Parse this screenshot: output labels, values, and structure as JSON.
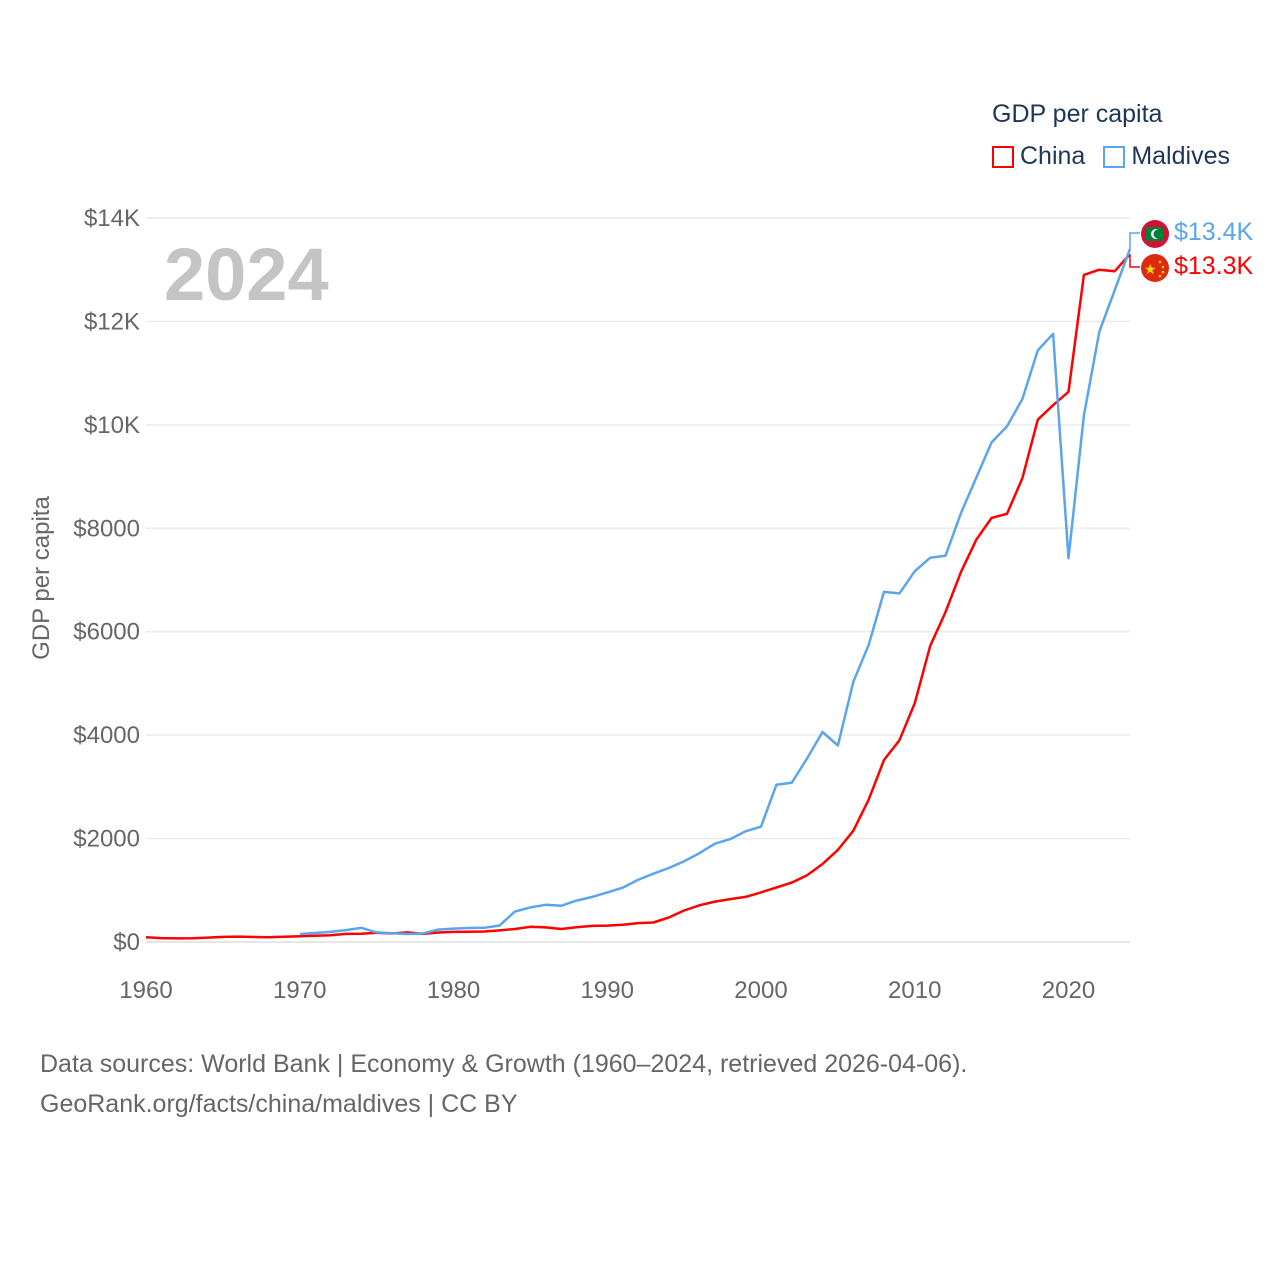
{
  "chart_data": {
    "type": "line",
    "title": "",
    "current_year": "2024",
    "xlabel": "",
    "ylabel": "GDP per capita",
    "xlim": [
      1960,
      2024
    ],
    "ylim": [
      0,
      14000
    ],
    "x_ticks": [
      1960,
      1970,
      1980,
      1990,
      2000,
      2010,
      2020
    ],
    "y_ticks": [
      0,
      2000,
      4000,
      6000,
      8000,
      10000,
      12000,
      14000
    ],
    "y_tick_labels": [
      "$0",
      "$2000",
      "$4000",
      "$6000",
      "$8000",
      "$10K",
      "$12K",
      "$14K"
    ],
    "grid": true,
    "legend": {
      "title": "GDP per capita",
      "placement": "top-right"
    },
    "series": [
      {
        "name": "China",
        "color": "#ff0000",
        "end_label": "$13.3K",
        "flag": "china-flag",
        "x_start": 1960,
        "values": [
          90,
          76,
          70,
          74,
          85,
          98,
          104,
          97,
          91,
          100,
          113,
          119,
          132,
          157,
          160,
          178,
          165,
          185,
          156,
          184,
          195,
          197,
          203,
          225,
          251,
          294,
          282,
          252,
          284,
          311,
          318,
          333,
          366,
          377,
          473,
          610,
          709,
          782,
          829,
          873,
          959,
          1053,
          1149,
          1289,
          1509,
          1780,
          2150,
          2750,
          3520,
          3900,
          4620,
          5720,
          6380,
          7150,
          7780,
          8200,
          8280,
          8970,
          10100,
          10380,
          10640,
          12900,
          13000,
          12970,
          13300
        ]
      },
      {
        "name": "Maldives",
        "color": "#5ba4ee",
        "end_label": "$13.4K",
        "flag": "maldives-flag",
        "x_start": 1970,
        "values": [
          155,
          175,
          195,
          230,
          275,
          185,
          170,
          155,
          165,
          240,
          260,
          270,
          275,
          320,
          590,
          670,
          720,
          700,
          800,
          870,
          960,
          1050,
          1200,
          1320,
          1430,
          1560,
          1720,
          1900,
          1990,
          2140,
          2230,
          3040,
          3080,
          3550,
          4060,
          3800,
          5030,
          5740,
          6770,
          6740,
          7170,
          7430,
          7470,
          8290,
          8980,
          9660,
          9970,
          10500,
          11440,
          11760,
          7420,
          10180,
          11800,
          12600,
          13400
        ]
      }
    ]
  },
  "footer": {
    "line1": "Data sources: World Bank | Economy & Growth (1960–2024, retrieved 2026-04-06).",
    "line2": "GeoRank.org/facts/china/maldives | CC BY"
  }
}
